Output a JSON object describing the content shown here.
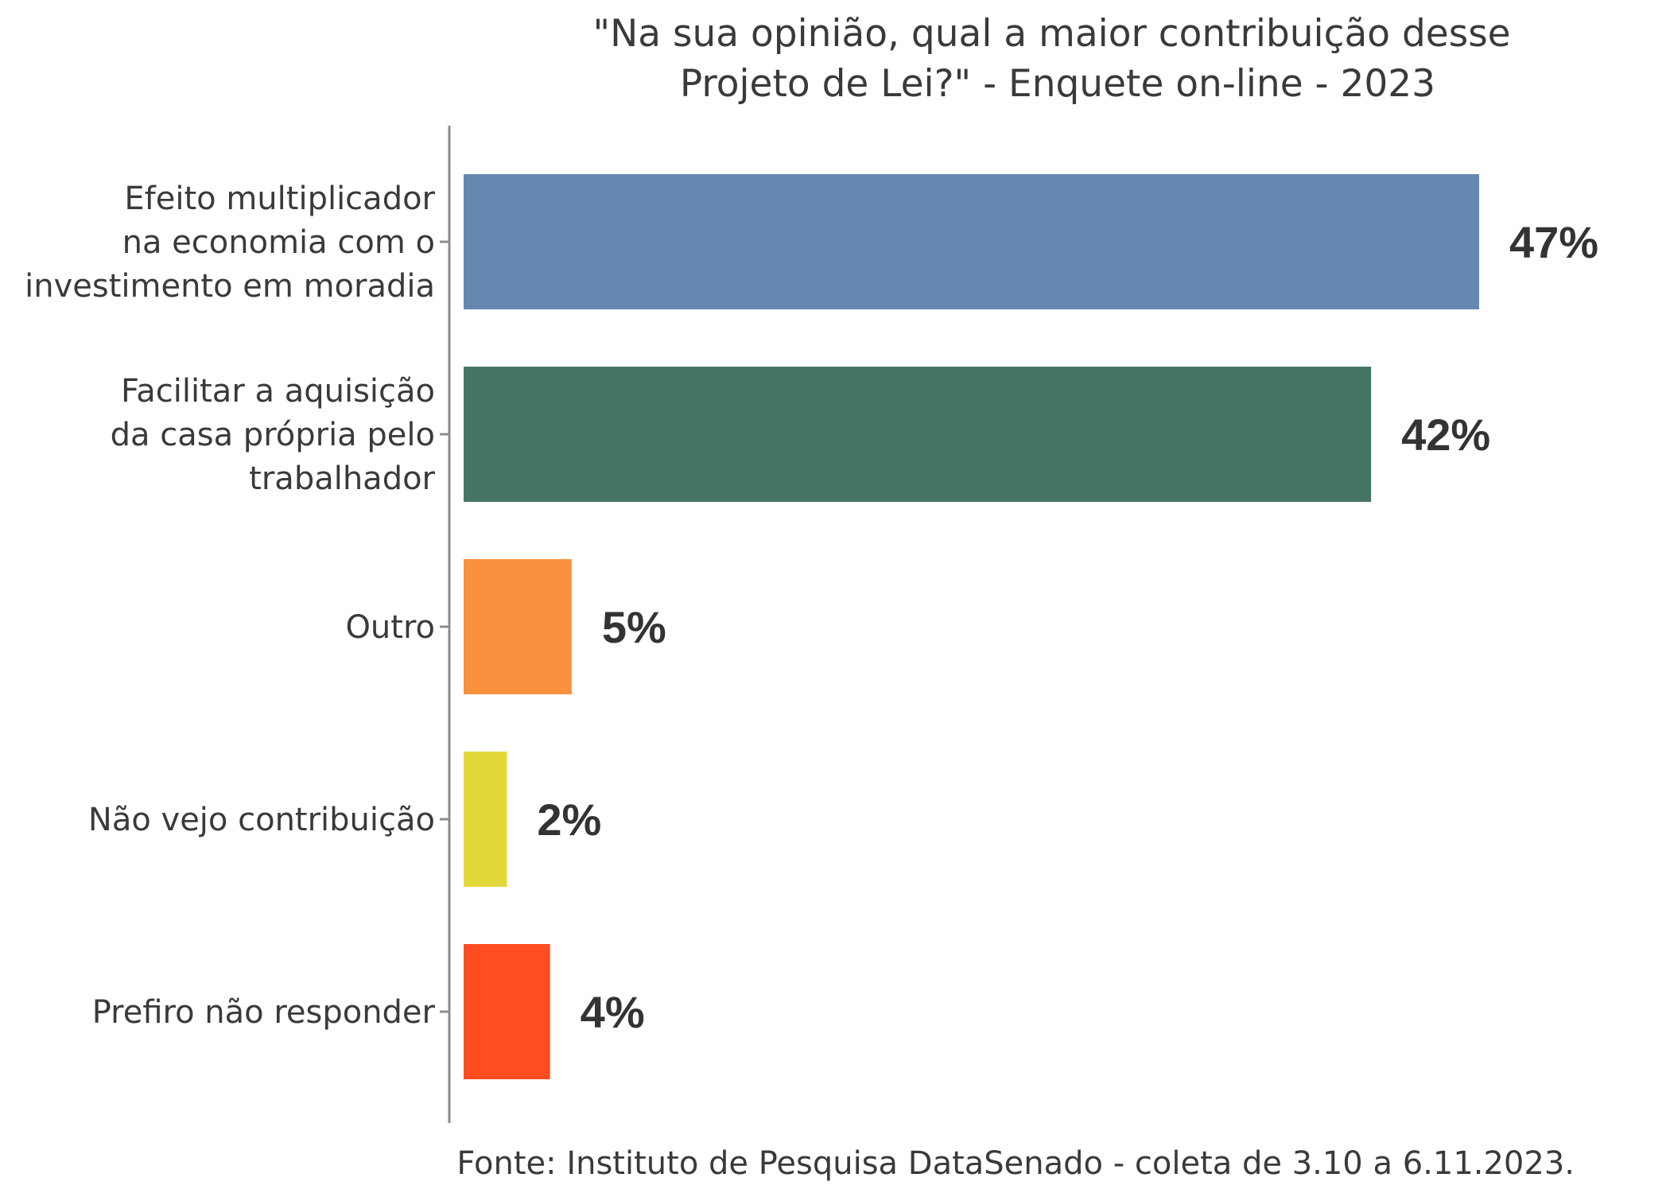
{
  "chart_data": {
    "type": "bar",
    "orientation": "horizontal",
    "title": "\"Na sua opinião, qual a maior contribuição desse Projeto de Lei?\" - Enquete on-line - 2023",
    "title_lines": [
      "\"Na sua opinião, qual a maior contribuição desse",
      "Projeto de Lei?\" - Enquete on-line - 2023"
    ],
    "categories": [
      "Efeito multiplicador na economia com o investimento em moradia",
      "Facilitar a aquisição da casa própria pelo trabalhador",
      "Outro",
      "Não vejo contribuição",
      "Prefiro não responder"
    ],
    "category_label_lines": [
      [
        "Efeito multiplicador",
        "na economia com o",
        "investimento em moradia"
      ],
      [
        "Facilitar a aquisição",
        "da casa própria pelo",
        "trabalhador"
      ],
      [
        "Outro"
      ],
      [
        "Não vejo contribuição"
      ],
      [
        "Prefiro não responder"
      ]
    ],
    "values": [
      47,
      42,
      5,
      2,
      4
    ],
    "value_labels": [
      "47%",
      "42%",
      "5%",
      "2%",
      "4%"
    ],
    "unit": "%",
    "colors": [
      "#6688B0",
      "#467564",
      "#FA913E",
      "#E3D83A",
      "#FF4C20"
    ],
    "xlim": [
      0,
      53
    ],
    "grid": false,
    "legend": "none",
    "caption": "Fonte: Instituto de Pesquisa DataSenado - coleta de 3.10 a 6.11.2023."
  }
}
